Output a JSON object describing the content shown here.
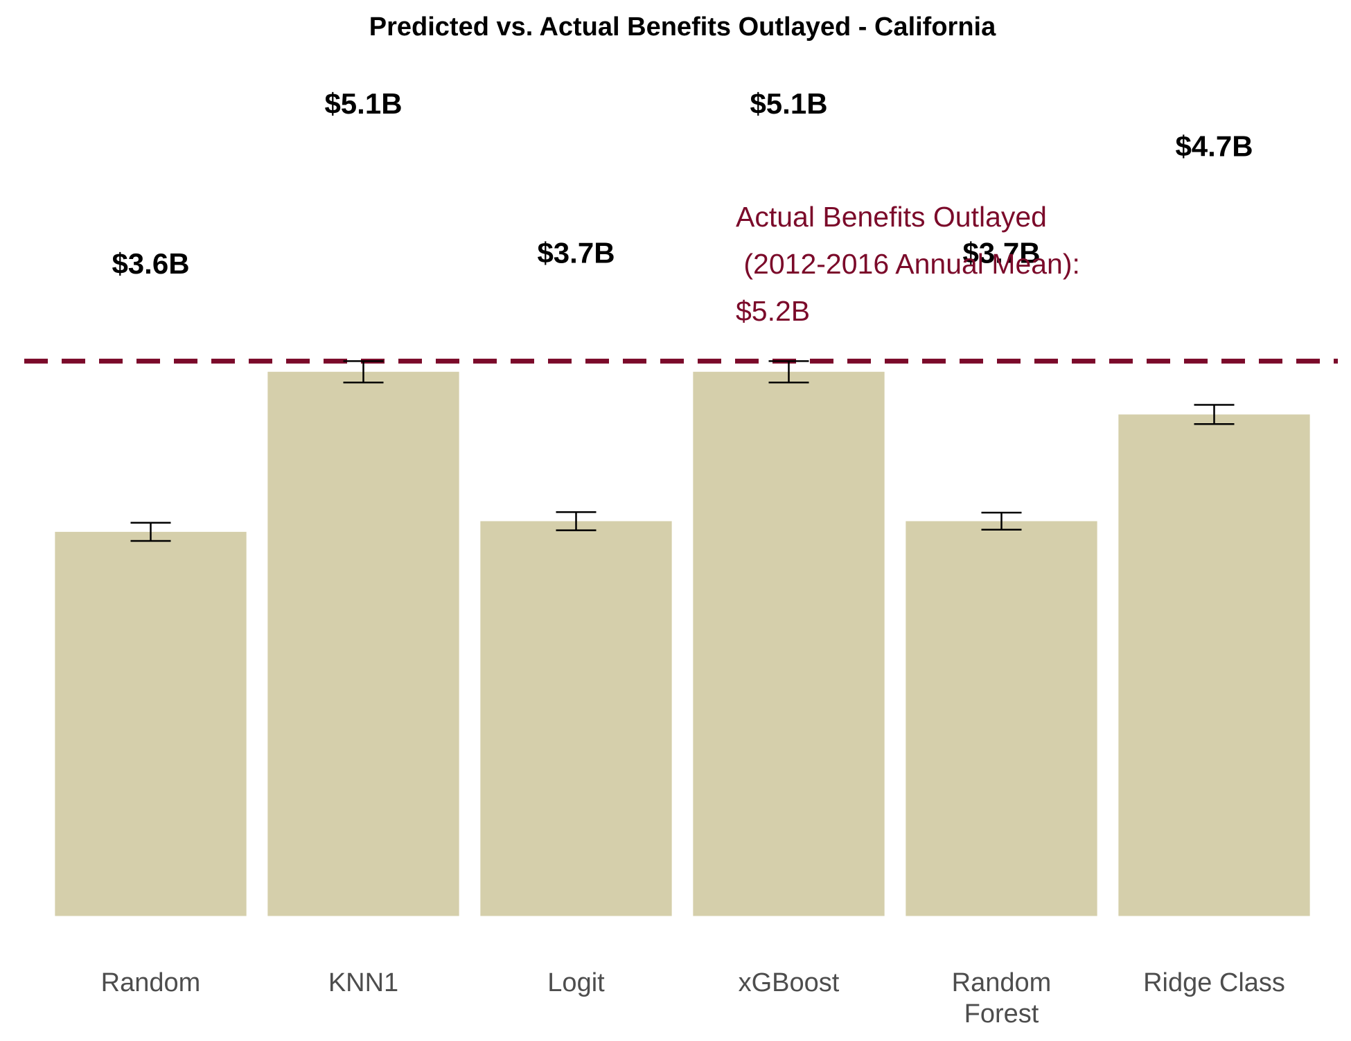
{
  "chart_data": {
    "type": "bar",
    "title": "Predicted vs. Actual Benefits Outlayed - California",
    "categories": [
      "Random",
      "KNN1",
      "Logit",
      "xGBoost",
      "Random\nForest",
      "Ridge Class"
    ],
    "values": [
      3.6,
      5.1,
      3.7,
      5.1,
      3.7,
      4.7
    ],
    "value_labels": [
      "$3.6B",
      "$5.1B",
      "$3.7B",
      "$5.1B",
      "$3.7B",
      "$4.7B"
    ],
    "errors": [
      0.085,
      0.1,
      0.085,
      0.1,
      0.08,
      0.09
    ],
    "color": "#d5cfab",
    "ylim": [
      0,
      8
    ],
    "reference_line": {
      "value": 5.2,
      "color": "#7b0a2a",
      "label": [
        "Actual Benefits Outlayed",
        " (2012-2016 Annual Mean):",
        "$5.2B"
      ]
    }
  }
}
